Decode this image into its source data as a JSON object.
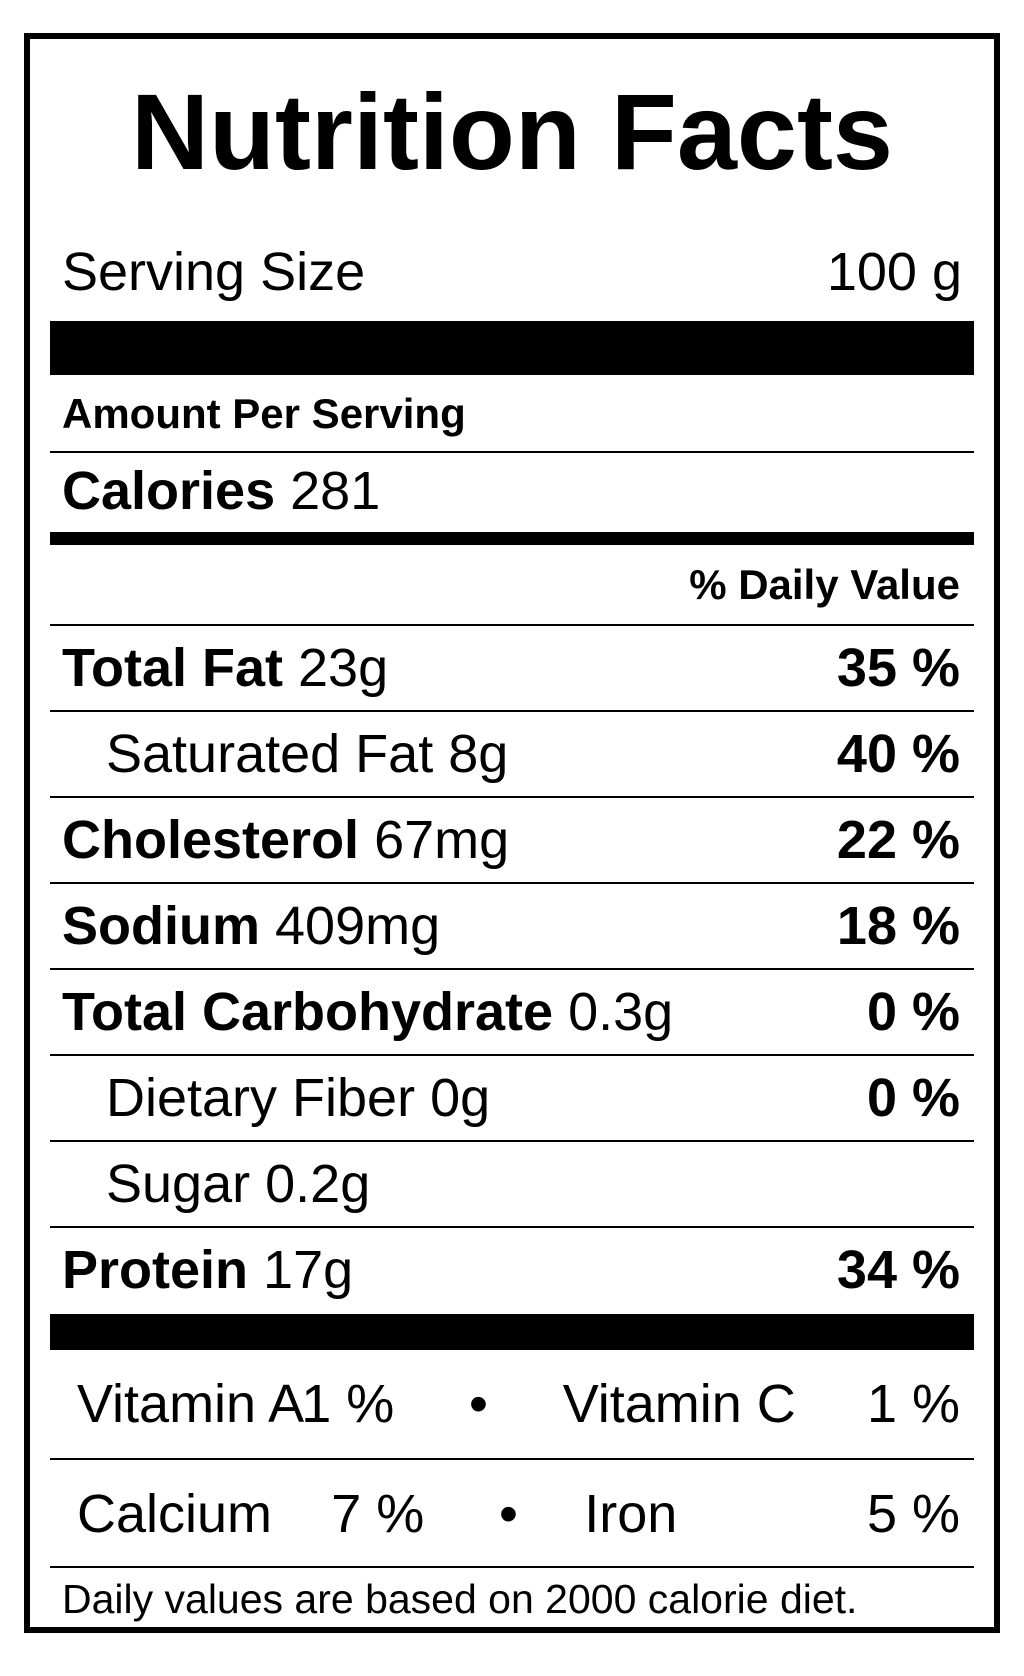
{
  "title": "Nutrition Facts",
  "serving": {
    "label": "Serving Size",
    "value": "100 g"
  },
  "amount_per_serving": "Amount Per Serving",
  "calories": {
    "label": "Calories",
    "value": "281"
  },
  "daily_value_header": "% Daily Value",
  "nutrients": [
    {
      "name": "Total Fat",
      "amount": "23g",
      "percent": "35 %"
    },
    {
      "name": "Saturated Fat",
      "amount": "8g",
      "percent": "40 %"
    },
    {
      "name": "Cholesterol",
      "amount": "67mg",
      "percent": "22 %"
    },
    {
      "name": "Sodium",
      "amount": "409mg",
      "percent": "18 %"
    },
    {
      "name": "Total Carbohydrate",
      "amount": "0.3g",
      "percent": "0 %"
    },
    {
      "name": "Dietary Fiber",
      "amount": "0g",
      "percent": "0 %"
    },
    {
      "name": "Sugar",
      "amount": "0.2g",
      "percent": ""
    },
    {
      "name": "Protein",
      "amount": "17g",
      "percent": "34 %"
    }
  ],
  "vitamins": {
    "row1": [
      {
        "name": "Vitamin A",
        "percent": "1 %"
      },
      {
        "name": "Vitamin C",
        "percent": "1 %"
      }
    ],
    "row2": [
      {
        "name": "Calcium",
        "percent": "7 %"
      },
      {
        "name": "Iron",
        "percent": "5 %"
      }
    ],
    "separator": "•"
  },
  "footnote": "Daily values are based on 2000 calorie diet."
}
